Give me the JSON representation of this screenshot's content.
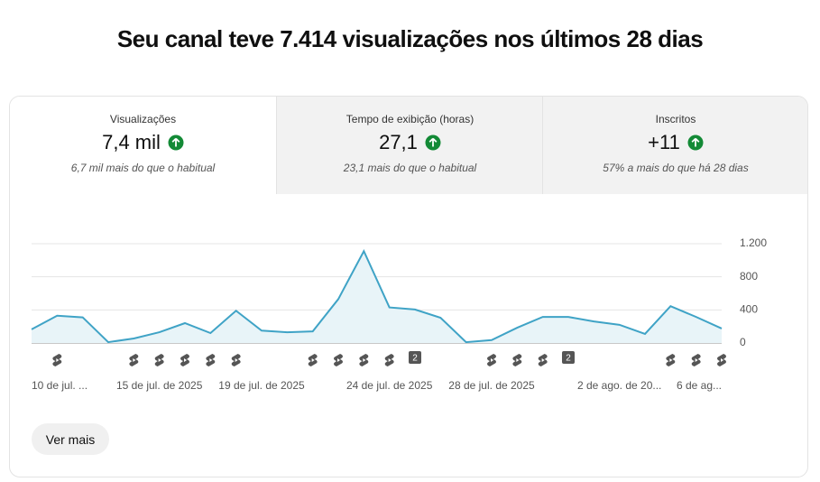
{
  "header": {
    "title": "Seu canal teve 7.414 visualizações nos últimos 28 dias"
  },
  "cards": [
    {
      "label": "Visualizações",
      "value": "7,4 mil",
      "note": "6,7 mil mais do que o habitual"
    },
    {
      "label": "Tempo de exibição (horas)",
      "value": "27,1",
      "note": "23,1 mais do que o habitual"
    },
    {
      "label": "Inscritos",
      "value": "+11",
      "note": "57% a mais do que há 28 dias"
    }
  ],
  "chart_data": {
    "type": "line",
    "categories": [
      "10 de jul. ...",
      null,
      null,
      null,
      null,
      "15 de jul. de 2025",
      null,
      null,
      null,
      "19 de jul. de 2025",
      null,
      null,
      null,
      null,
      "24 de jul. de 2025",
      null,
      null,
      null,
      "28 de jul. de 2025",
      null,
      null,
      null,
      null,
      "2 de ago. de 20...",
      null,
      null,
      null,
      "6 de ag..."
    ],
    "values": [
      165,
      330,
      310,
      10,
      55,
      130,
      240,
      120,
      390,
      150,
      130,
      140,
      530,
      1110,
      430,
      405,
      305,
      10,
      35,
      185,
      315,
      315,
      260,
      220,
      110,
      445,
      315,
      175
    ],
    "color": "#3fa3c6",
    "ylim": [
      0,
      1200
    ],
    "yticks": [
      0,
      400,
      800,
      {
        "value": 1200,
        "label": "1.200"
      }
    ],
    "grid": true,
    "badges": [
      "2",
      "2"
    ]
  },
  "button": {
    "label": "Ver mais"
  }
}
